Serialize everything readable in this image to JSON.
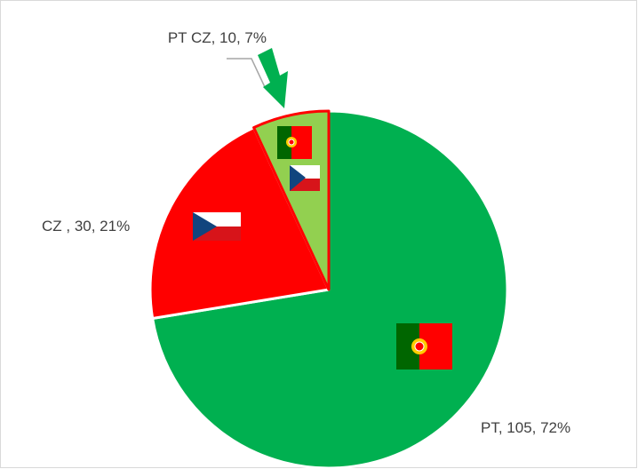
{
  "chart_data": {
    "type": "pie",
    "categories": [
      "PT",
      "CZ ",
      "PT CZ"
    ],
    "values": [
      105,
      30,
      10
    ],
    "value_labels": [
      "PT, 105, 72%",
      "CZ , 30, 21%",
      "PT CZ, 10, 7%"
    ],
    "colors": [
      "#00b050",
      "#ff0000",
      "#92d050"
    ]
  }
}
